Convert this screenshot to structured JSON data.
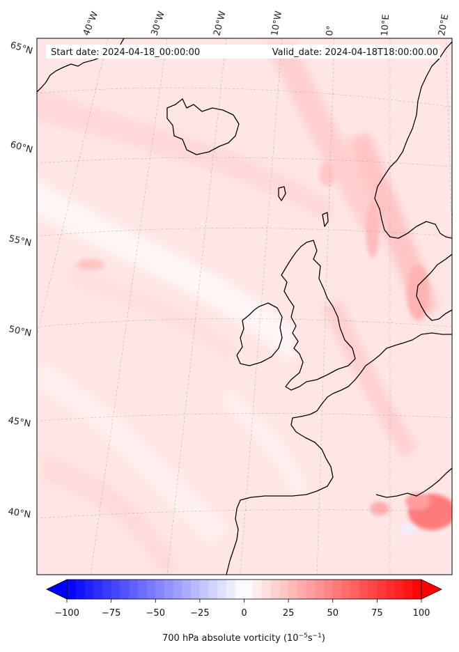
{
  "header": {
    "start_date": "Start date: 2024-04-18_00:00:00",
    "valid_date": "Valid_date: 2024-04-18T18:00:00.00"
  },
  "gridlines": {
    "longitude_labels": [
      "40°W",
      "30°W",
      "20°W",
      "10°W",
      "0°",
      "10°E",
      "20°E"
    ],
    "latitude_labels": [
      "65°N",
      "60°N",
      "55°N",
      "50°N",
      "45°N",
      "40°N"
    ]
  },
  "colorbar": {
    "title": "700 hPa absolute vorticity (10",
    "title_exp1": "−5",
    "title_mid": "s",
    "title_exp2": "−1",
    "title_end": ")",
    "ticks": [
      "−100",
      "−75",
      "−50",
      "−25",
      "0",
      "25",
      "50",
      "75",
      "100"
    ],
    "min": -100,
    "max": 100,
    "levels": 40,
    "colormap": "bwr",
    "extend": "both"
  },
  "colors": {
    "negative": "#0000ff",
    "zero": "#ffffff",
    "positive": "#ff0000",
    "coastline": "#000000"
  }
}
